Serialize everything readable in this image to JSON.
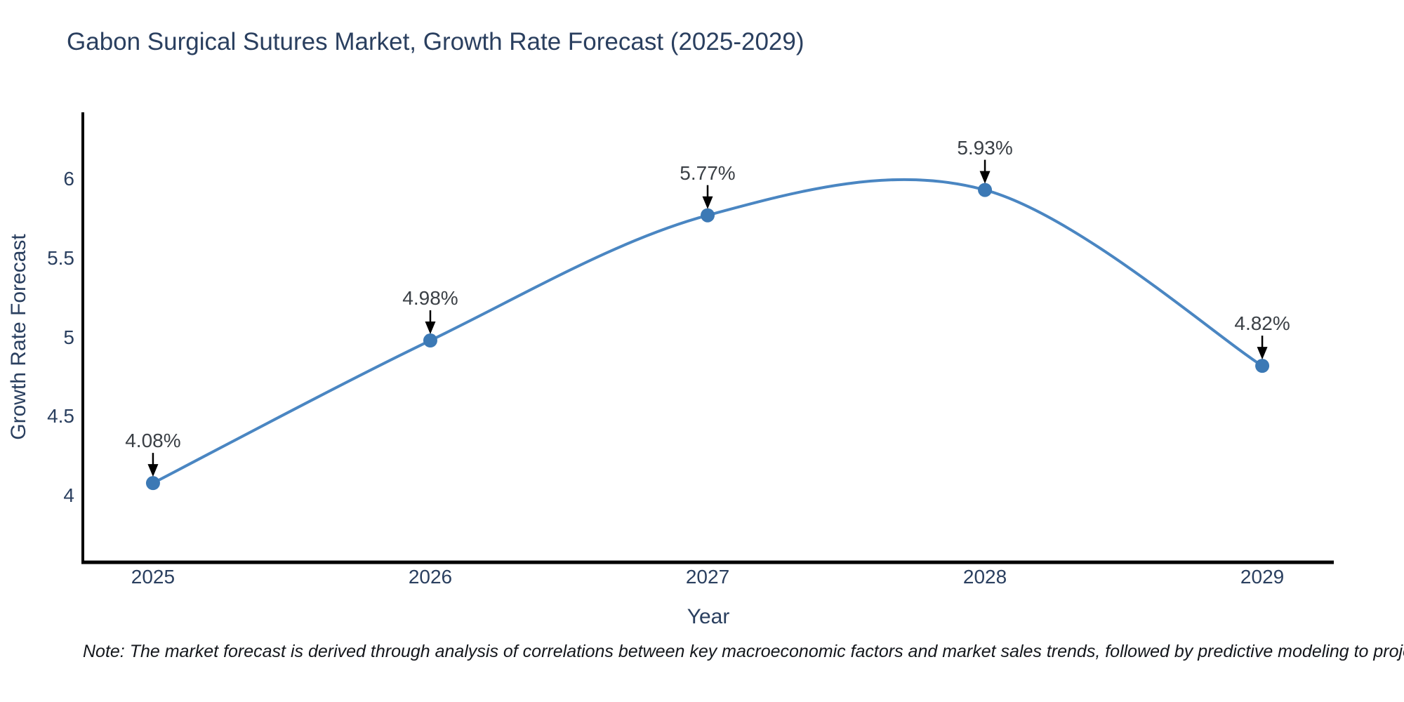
{
  "note": "Note: The market forecast is derived through analysis of correlations between key macroeconomic factors and market sales trends, followed by predictive modeling to project future sales",
  "chart_data": {
    "type": "line",
    "title": "Gabon Surgical Sutures Market, Growth Rate Forecast (2025-2029)",
    "xlabel": "Year",
    "ylabel": "Growth Rate Forecast",
    "x": [
      "2025",
      "2026",
      "2027",
      "2028",
      "2029"
    ],
    "series": [
      {
        "name": "Growth Rate Forecast",
        "values": [
          4.08,
          4.98,
          5.77,
          5.93,
          4.82
        ]
      }
    ],
    "point_labels": [
      "4.08%",
      "4.98%",
      "5.77%",
      "5.93%",
      "4.82%"
    ],
    "ytick_values": [
      4,
      4.5,
      5,
      5.5,
      6
    ],
    "ytick_labels": [
      "4",
      "4.5",
      "5",
      "5.5",
      "6"
    ],
    "ylim": [
      3.58,
      6.42
    ],
    "xlim": [
      -0.253,
      4.258
    ],
    "line_shape": "spline",
    "grid": false,
    "legend": "none",
    "colors": {
      "line": "#4a86c2",
      "marker": "#3c79b5",
      "axis": "#000000",
      "arrow": "#000000",
      "title_text": "#2a3f5f",
      "tick_text": "#2a3f5f",
      "point_label_text": "#3b4046",
      "note_text": "#14171c",
      "background": "#ffffff"
    }
  }
}
